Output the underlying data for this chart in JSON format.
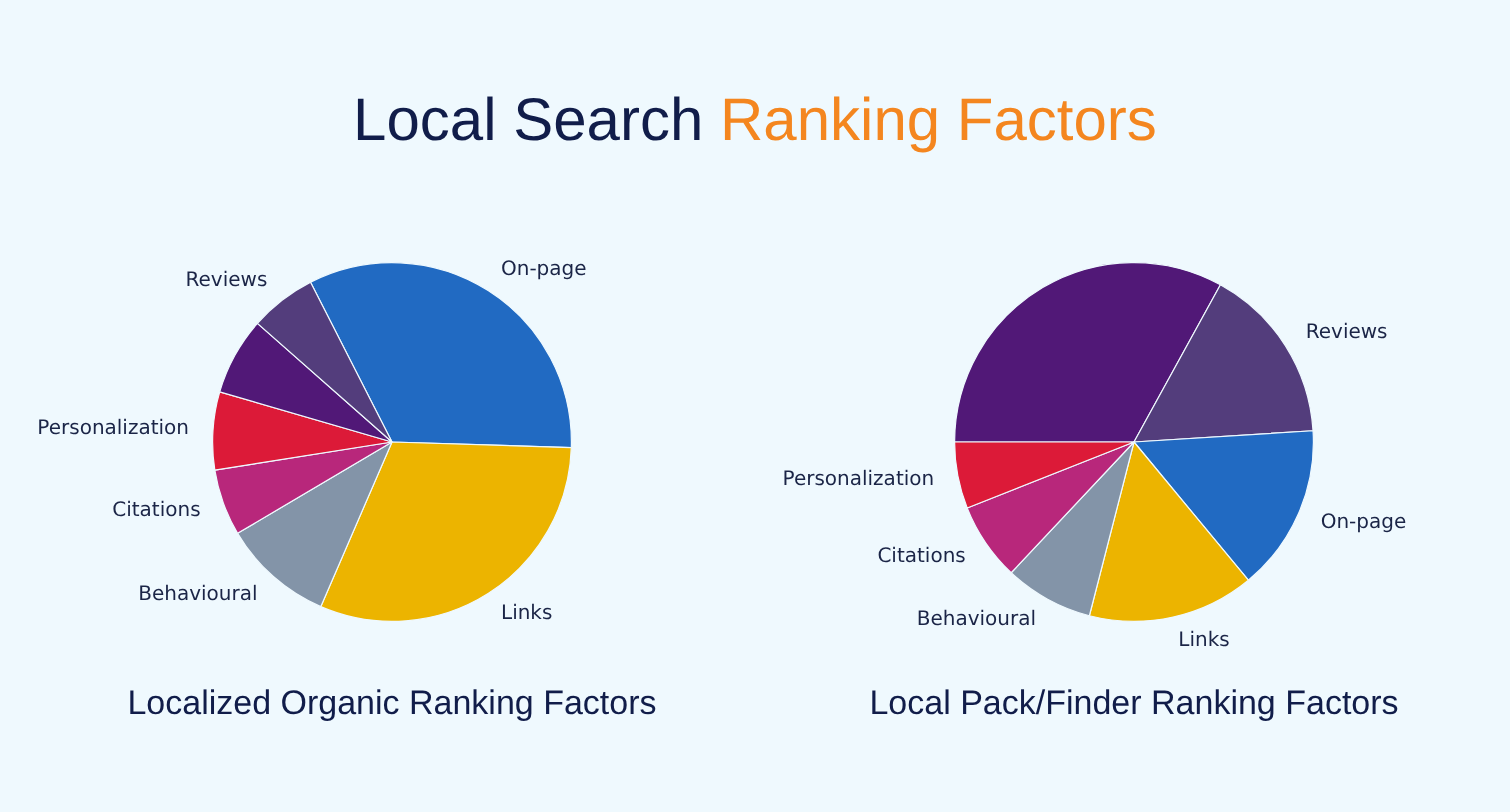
{
  "chart_data": [
    {
      "type": "other",
      "title": "Local Search Ranking Factors"
    },
    {
      "type": "pie",
      "title": "Localized Organic Ranking Factors",
      "categories": [
        "On-page",
        "Links",
        "Behavioural",
        "Citations",
        "Personalization",
        null,
        "Reviews"
      ],
      "values": [
        33,
        31,
        10,
        6,
        7,
        7,
        6
      ],
      "colors": [
        "#216ac2",
        "#ecb400",
        "#8394a8",
        "#b8277b",
        "#dc1a38",
        "#511877",
        "#533d7c"
      ]
    },
    {
      "type": "pie",
      "title": "Local Pack/Finder Ranking Factors",
      "categories": [
        null,
        "Reviews",
        "On-page",
        "Links",
        "Behavioural",
        "Citations",
        "Personalization"
      ],
      "values": [
        33,
        16,
        15,
        15,
        8,
        7,
        6
      ],
      "colors": [
        "#511877",
        "#533d7c",
        "#216ac2",
        "#ecb400",
        "#8394a8",
        "#b8277b",
        "#dc1a38"
      ]
    }
  ]
}
